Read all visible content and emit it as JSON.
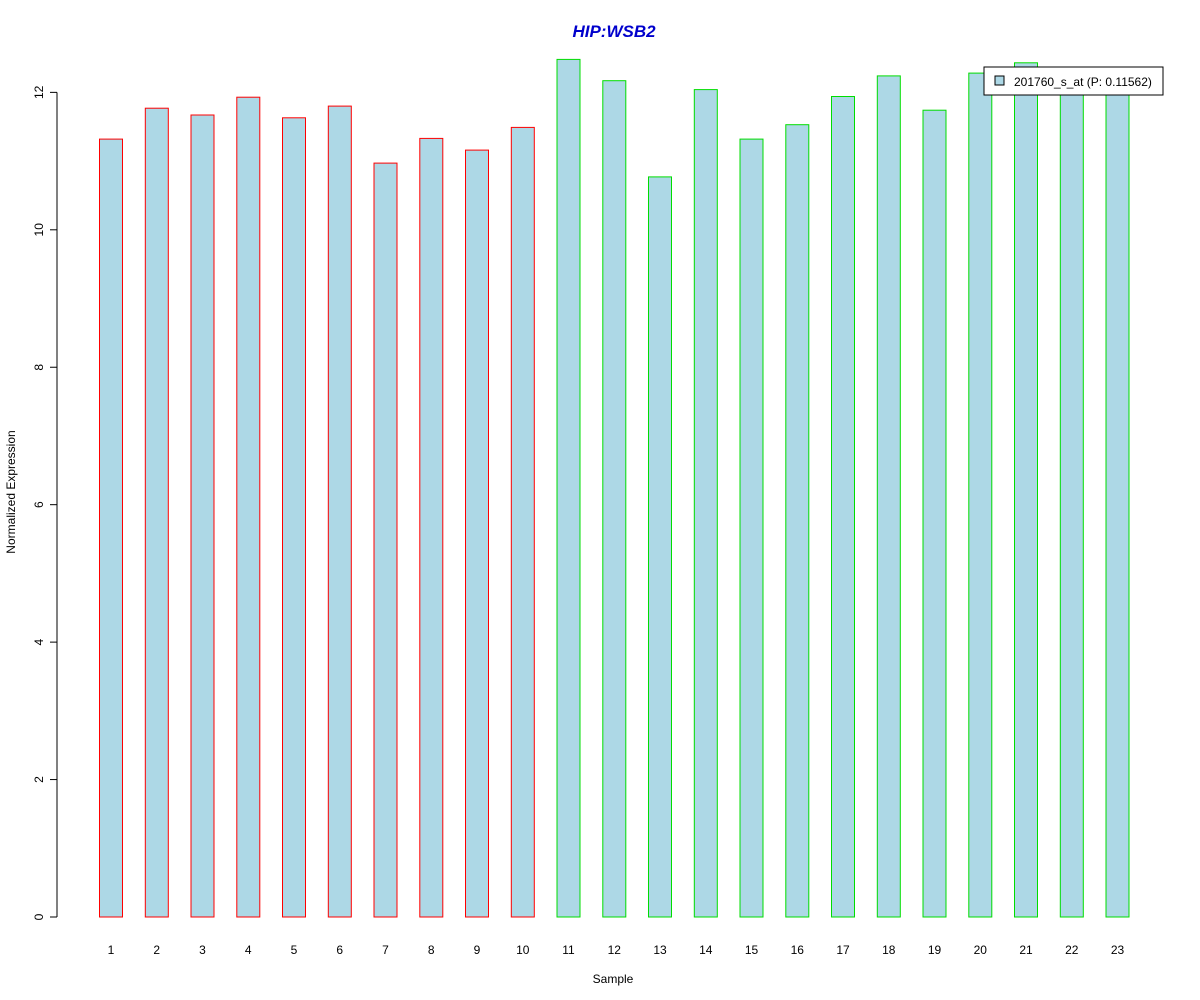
{
  "chart_data": {
    "type": "bar",
    "title": "HIP:WSB2",
    "xlabel": "Sample",
    "ylabel": "Normalized Expression",
    "categories": [
      "1",
      "2",
      "3",
      "4",
      "5",
      "6",
      "7",
      "8",
      "9",
      "10",
      "11",
      "12",
      "13",
      "14",
      "15",
      "16",
      "17",
      "18",
      "19",
      "20",
      "21",
      "22",
      "23"
    ],
    "series": [
      {
        "name": "201760_s_at (P: 0.11562)",
        "values": [
          11.32,
          11.77,
          11.67,
          11.93,
          11.63,
          11.8,
          10.97,
          11.33,
          11.16,
          11.49,
          12.48,
          12.17,
          10.77,
          12.04,
          11.32,
          11.53,
          11.94,
          12.24,
          11.74,
          12.28,
          12.43,
          12.1,
          12.0
        ],
        "groups": [
          "red",
          "red",
          "red",
          "red",
          "red",
          "red",
          "red",
          "red",
          "red",
          "red",
          "green",
          "green",
          "green",
          "green",
          "green",
          "green",
          "green",
          "green",
          "green",
          "green",
          "green",
          "green",
          "green"
        ]
      }
    ],
    "ylim": [
      0,
      12.5
    ],
    "yticks": [
      0,
      2,
      4,
      6,
      8,
      10,
      12
    ],
    "grid": false,
    "legend_position": "top-right",
    "colors": {
      "title": "#0000cc",
      "bar_fill": "#add8e6",
      "group_red": "#ff0000",
      "group_green": "#00dd00",
      "axis": "#000000"
    }
  }
}
